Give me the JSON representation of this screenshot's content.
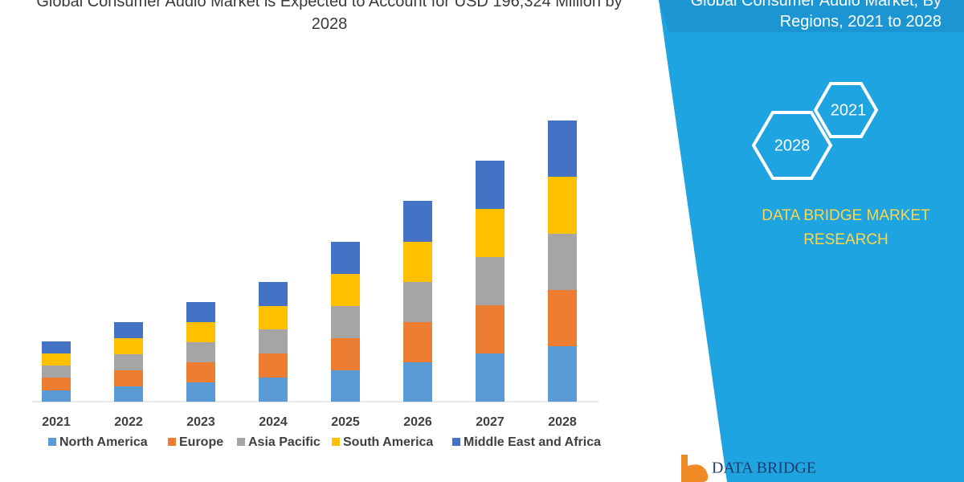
{
  "chart_data": {
    "type": "stacked-bar",
    "title": "Global Consumer Audio Market is Expected to Account for USD 196,324 Million by 2028",
    "categories": [
      "2021",
      "2022",
      "2023",
      "2024",
      "2025",
      "2026",
      "2027",
      "2028"
    ],
    "series": [
      {
        "name": "North America",
        "color": "#5b9bd5",
        "values": [
          14,
          19,
          24,
          30,
          39,
          49,
          60,
          69
        ]
      },
      {
        "name": "Europe",
        "color": "#ed7d31",
        "values": [
          16,
          20,
          25,
          30,
          40,
          50,
          60,
          70
        ]
      },
      {
        "name": "Asia Pacific",
        "color": "#a5a5a5",
        "values": [
          15,
          20,
          25,
          30,
          40,
          50,
          60,
          70
        ]
      },
      {
        "name": "South America",
        "color": "#ffc000",
        "values": [
          15,
          20,
          25,
          29,
          40,
          50,
          60,
          71
        ]
      },
      {
        "name": "Middle East and Africa",
        "color": "#4472c4",
        "values": [
          15,
          20,
          25,
          30,
          40,
          51,
          60,
          70
        ]
      }
    ]
  },
  "panel": {
    "title": "Global Consumer Audio Market, By Regions, 2021 to 2028",
    "hexagons": [
      "2021",
      "2028"
    ],
    "brand": "DATA BRIDGE MARKET RESEARCH",
    "logo": "DATA BRIDGE"
  }
}
